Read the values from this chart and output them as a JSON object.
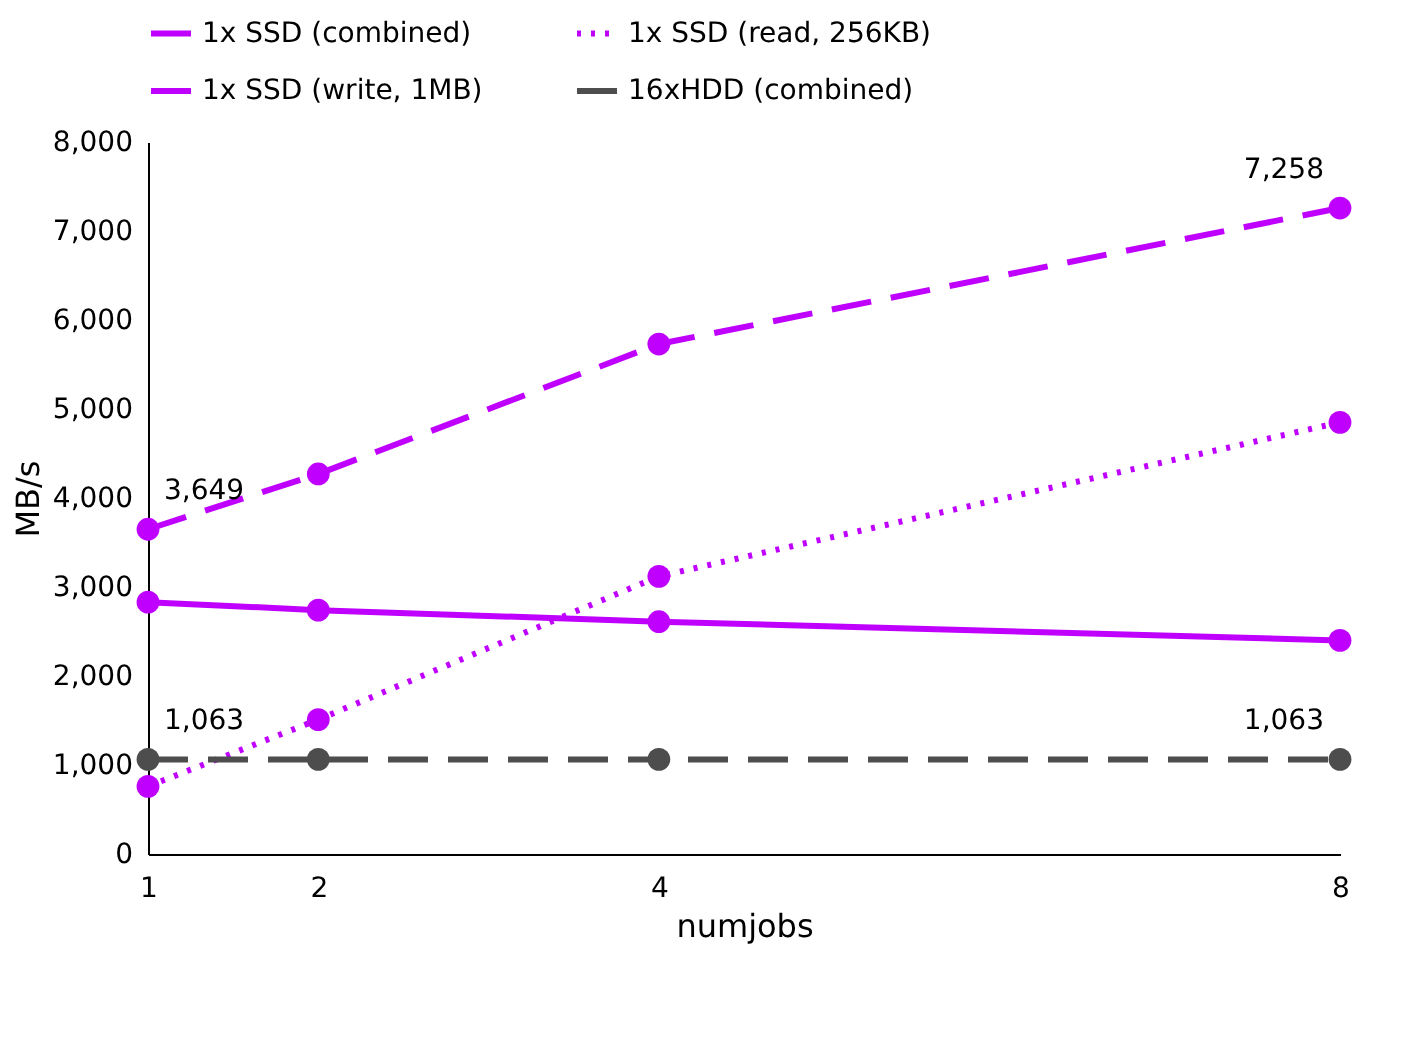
{
  "chart_data": {
    "type": "line",
    "xlabel": "numjobs",
    "ylabel": "MB/s",
    "x": [
      1,
      2,
      4,
      8
    ],
    "xlim": [
      1,
      8
    ],
    "xticks": [
      1,
      2,
      4,
      8
    ],
    "ylim": [
      0,
      8000
    ],
    "yticks": [
      0,
      {
        "value": 1000,
        "label": "1,000"
      },
      {
        "value": 2000,
        "label": "2,000"
      },
      {
        "value": 3000,
        "label": "3,000"
      },
      {
        "value": 4000,
        "label": "4,000"
      },
      {
        "value": 5000,
        "label": "5,000"
      },
      {
        "value": 6000,
        "label": "6,000"
      },
      {
        "value": 7000,
        "label": "7,000"
      },
      {
        "value": 8000,
        "label": "8,000"
      }
    ],
    "grid": false,
    "legend": "top",
    "marker": "circle",
    "series": [
      {
        "name": "1x SSD (combined)",
        "color": "#bf00ff",
        "line_style": "dashed",
        "values": [
          3649,
          4270,
          5730,
          7258
        ],
        "value_labels": [
          "3,649",
          null,
          null,
          "7,258"
        ]
      },
      {
        "name": "1x SSD (read, 256KB)",
        "color": "#bf00ff",
        "line_style": "dotted",
        "values": [
          760,
          1510,
          3120,
          4850
        ]
      },
      {
        "name": "1x SSD (write, 1MB)",
        "color": "#bf00ff",
        "line_style": "solid",
        "values": [
          2830,
          2740,
          2610,
          2400
        ]
      },
      {
        "name": "16xHDD (combined)",
        "color": "#4d4d4d",
        "line_style": "dashed",
        "values": [
          1063,
          1063,
          1063,
          1063
        ],
        "value_labels": [
          "1,063",
          null,
          null,
          "1,063"
        ]
      }
    ]
  }
}
